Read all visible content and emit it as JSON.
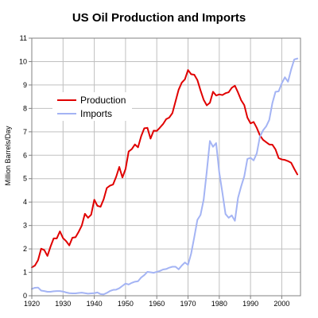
{
  "chart_data": {
    "type": "line",
    "title": "US Oil Production and Imports",
    "xlabel": "",
    "ylabel": "Million Barrels/Day",
    "xlim": [
      1920,
      2006
    ],
    "ylim": [
      0,
      11
    ],
    "xticks": [
      1920,
      1930,
      1940,
      1950,
      1960,
      1970,
      1980,
      1990,
      2000
    ],
    "yticks": [
      0,
      1,
      2,
      3,
      4,
      5,
      6,
      7,
      8,
      9,
      10,
      11
    ],
    "grid": true,
    "legend_position": "upper-left",
    "colors": {
      "production": "#e00000",
      "imports": "#a4b4f4",
      "grid": "#c0c0c0",
      "axis": "#808080"
    },
    "series": [
      {
        "name": "Production",
        "color": "#e00000",
        "x": [
          1920,
          1921,
          1922,
          1923,
          1924,
          1925,
          1926,
          1927,
          1928,
          1929,
          1930,
          1931,
          1932,
          1933,
          1934,
          1935,
          1936,
          1937,
          1938,
          1939,
          1940,
          1941,
          1942,
          1943,
          1944,
          1945,
          1946,
          1947,
          1948,
          1949,
          1950,
          1951,
          1952,
          1953,
          1954,
          1955,
          1956,
          1957,
          1958,
          1959,
          1960,
          1961,
          1962,
          1963,
          1964,
          1965,
          1966,
          1967,
          1968,
          1969,
          1970,
          1971,
          1972,
          1973,
          1974,
          1975,
          1976,
          1977,
          1978,
          1979,
          1980,
          1981,
          1982,
          1983,
          1984,
          1985,
          1986,
          1987,
          1988,
          1989,
          1990,
          1991,
          1992,
          1993,
          1994,
          1995,
          1996,
          1997,
          1998,
          1999,
          2000,
          2001,
          2002,
          2003,
          2004,
          2005
        ],
        "values": [
          1.21,
          1.29,
          1.52,
          2.01,
          1.95,
          1.7,
          2.1,
          2.45,
          2.45,
          2.75,
          2.46,
          2.33,
          2.15,
          2.48,
          2.5,
          2.73,
          3.0,
          3.5,
          3.33,
          3.46,
          4.1,
          3.84,
          3.8,
          4.12,
          4.6,
          4.7,
          4.75,
          5.08,
          5.5,
          5.05,
          5.41,
          6.16,
          6.26,
          6.46,
          6.34,
          6.81,
          7.15,
          7.17,
          6.71,
          7.05,
          7.04,
          7.18,
          7.33,
          7.54,
          7.61,
          7.8,
          8.3,
          8.8,
          9.1,
          9.24,
          9.64,
          9.46,
          9.44,
          9.21,
          8.77,
          8.37,
          8.13,
          8.24,
          8.71,
          8.55,
          8.6,
          8.57,
          8.65,
          8.69,
          8.88,
          8.97,
          8.68,
          8.35,
          8.14,
          7.61,
          7.36,
          7.42,
          7.17,
          6.85,
          6.66,
          6.56,
          6.46,
          6.45,
          6.25,
          5.88,
          5.82,
          5.8,
          5.75,
          5.68,
          5.42,
          5.18
        ]
      },
      {
        "name": "Imports",
        "color": "#a4b4f4",
        "x": [
          1920,
          1921,
          1922,
          1923,
          1924,
          1925,
          1926,
          1927,
          1928,
          1929,
          1930,
          1931,
          1932,
          1933,
          1934,
          1935,
          1936,
          1937,
          1938,
          1939,
          1940,
          1941,
          1942,
          1943,
          1944,
          1945,
          1946,
          1947,
          1948,
          1949,
          1950,
          1951,
          1952,
          1953,
          1954,
          1955,
          1956,
          1957,
          1958,
          1959,
          1960,
          1961,
          1962,
          1963,
          1964,
          1965,
          1966,
          1967,
          1968,
          1969,
          1970,
          1971,
          1972,
          1973,
          1974,
          1975,
          1976,
          1977,
          1978,
          1979,
          1980,
          1981,
          1982,
          1983,
          1984,
          1985,
          1986,
          1987,
          1988,
          1989,
          1990,
          1991,
          1992,
          1993,
          1994,
          1995,
          1996,
          1997,
          1998,
          1999,
          2000,
          2001,
          2002,
          2003,
          2004,
          2005
        ],
        "values": [
          0.29,
          0.34,
          0.35,
          0.22,
          0.2,
          0.17,
          0.17,
          0.19,
          0.2,
          0.2,
          0.18,
          0.14,
          0.11,
          0.1,
          0.1,
          0.12,
          0.13,
          0.11,
          0.09,
          0.1,
          0.11,
          0.14,
          0.07,
          0.06,
          0.12,
          0.2,
          0.25,
          0.26,
          0.32,
          0.42,
          0.52,
          0.48,
          0.55,
          0.6,
          0.62,
          0.78,
          0.88,
          1.02,
          1.0,
          0.98,
          1.02,
          1.06,
          1.12,
          1.14,
          1.2,
          1.24,
          1.24,
          1.13,
          1.29,
          1.42,
          1.32,
          1.8,
          2.5,
          3.24,
          3.45,
          4.1,
          5.3,
          6.61,
          6.36,
          6.52,
          5.26,
          4.4,
          3.49,
          3.33,
          3.43,
          3.2,
          4.18,
          4.67,
          5.1,
          5.84,
          5.89,
          5.78,
          6.08,
          6.79,
          7.06,
          7.23,
          7.51,
          8.23,
          8.71,
          8.73,
          9.07,
          9.33,
          9.14,
          9.66,
          10.09,
          10.13
        ]
      }
    ]
  }
}
